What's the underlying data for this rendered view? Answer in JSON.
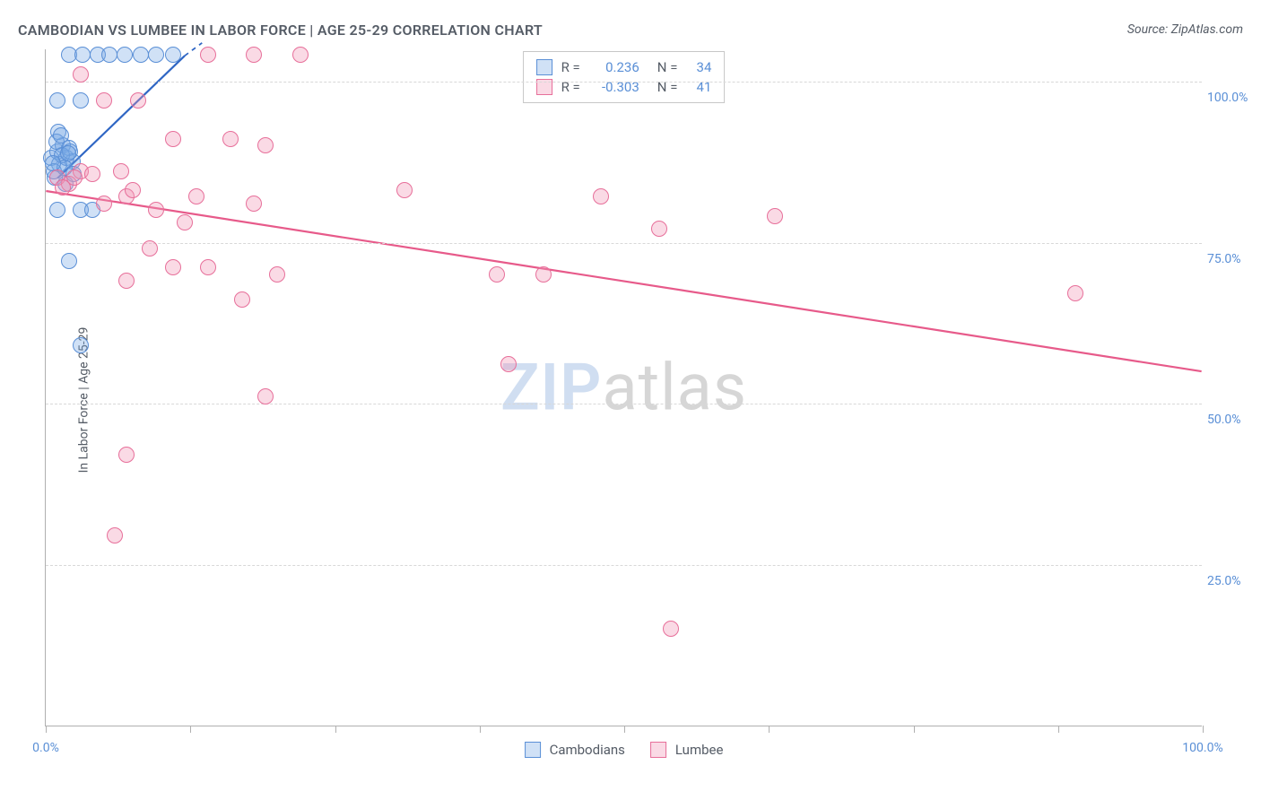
{
  "header": {
    "title": "CAMBODIAN VS LUMBEE IN LABOR FORCE | AGE 25-29 CORRELATION CHART",
    "source": "Source: ZipAtlas.com"
  },
  "ylabel": "In Labor Force | Age 25-29",
  "chart": {
    "type": "scatter",
    "xlim": [
      0,
      100
    ],
    "ylim": [
      0,
      105
    ],
    "x_ticks": [
      0,
      12.5,
      25,
      37.5,
      50,
      62.5,
      75,
      87.5,
      100
    ],
    "x_tick_labels": {
      "0": "0.0%",
      "100": "100.0%"
    },
    "y_grid": [
      25,
      50,
      75,
      100
    ],
    "y_tick_labels": {
      "25": "25.0%",
      "50": "50.0%",
      "75": "75.0%",
      "100": "100.0%"
    },
    "background_color": "#ffffff",
    "grid_color": "#d8d8d8",
    "marker_radius": 9,
    "marker_border": 1.5,
    "watermark": {
      "zip": "ZIP",
      "atlas": "atlas"
    },
    "series": [
      {
        "name": "Cambodians",
        "fill": "rgba(120,170,230,0.35)",
        "stroke": "#5a8fd6",
        "trend": {
          "x1": 1,
          "y1": 85,
          "x2": 12,
          "y2": 104,
          "dash_x2": 13.5,
          "dash_y2": 106,
          "color": "#2f66c4",
          "width": 2.2
        },
        "R": "0.236",
        "N": "34",
        "points": [
          [
            0.5,
            88
          ],
          [
            1,
            89
          ],
          [
            1.2,
            87
          ],
          [
            1.5,
            90
          ],
          [
            1.8,
            88
          ],
          [
            2,
            89.5
          ],
          [
            2.3,
            87.5
          ],
          [
            0.8,
            85
          ],
          [
            1.1,
            92
          ],
          [
            1,
            80
          ],
          [
            3,
            80
          ],
          [
            4,
            80
          ],
          [
            2,
            72
          ],
          [
            3,
            59
          ],
          [
            1,
            97
          ],
          [
            3,
            97
          ],
          [
            2,
            104
          ],
          [
            3.2,
            104
          ],
          [
            4.5,
            104
          ],
          [
            5.5,
            104
          ],
          [
            6.8,
            104
          ],
          [
            8.2,
            104
          ],
          [
            9.5,
            104
          ],
          [
            11,
            104
          ],
          [
            0.7,
            86
          ],
          [
            1.4,
            88.5
          ],
          [
            1.6,
            86.5
          ],
          [
            2.1,
            89
          ],
          [
            0.9,
            90.5
          ],
          [
            1.3,
            91.5
          ],
          [
            1.7,
            84
          ],
          [
            2.4,
            85.5
          ],
          [
            0.6,
            87.2
          ],
          [
            1.9,
            88.8
          ]
        ]
      },
      {
        "name": "Lumbee",
        "fill": "rgba(240,150,180,0.35)",
        "stroke": "#e76f9a",
        "trend": {
          "x1": 0,
          "y1": 83,
          "x2": 100,
          "y2": 55,
          "color": "#e75a8a",
          "width": 2.2
        },
        "R": "-0.303",
        "N": "41",
        "points": [
          [
            1,
            85
          ],
          [
            2,
            84
          ],
          [
            3,
            86
          ],
          [
            1.5,
            83.5
          ],
          [
            2.5,
            85
          ],
          [
            4,
            85.5
          ],
          [
            5,
            97
          ],
          [
            8,
            97
          ],
          [
            11,
            91
          ],
          [
            16,
            91
          ],
          [
            19,
            90
          ],
          [
            3,
            101
          ],
          [
            14,
            104
          ],
          [
            18,
            104
          ],
          [
            22,
            104
          ],
          [
            5,
            81
          ],
          [
            7,
            82
          ],
          [
            13,
            82
          ],
          [
            18,
            81
          ],
          [
            31,
            83
          ],
          [
            48,
            82
          ],
          [
            63,
            79
          ],
          [
            53,
            77
          ],
          [
            9,
            74
          ],
          [
            11,
            71
          ],
          [
            14,
            71
          ],
          [
            20,
            70
          ],
          [
            7,
            69
          ],
          [
            17,
            66
          ],
          [
            39,
            70
          ],
          [
            43,
            70
          ],
          [
            40,
            56
          ],
          [
            89,
            67
          ],
          [
            7,
            42
          ],
          [
            19,
            51
          ],
          [
            6,
            29.5
          ],
          [
            7.5,
            83
          ],
          [
            9.5,
            80
          ],
          [
            12,
            78
          ],
          [
            6.5,
            86
          ],
          [
            54,
            15
          ]
        ]
      }
    ]
  },
  "legend_top": {
    "rows": [
      {
        "sw_fill": "rgba(120,170,230,0.35)",
        "sw_stroke": "#5a8fd6",
        "r_label": "R =",
        "r_val": "0.236",
        "n_label": "N =",
        "n_val": "34",
        "pad": "  "
      },
      {
        "sw_fill": "rgba(240,150,180,0.35)",
        "sw_stroke": "#e76f9a",
        "r_label": "R =",
        "r_val": "-0.303",
        "n_label": "N =",
        "n_val": "41",
        "pad": ""
      }
    ],
    "label_color": "#555c66",
    "value_color": "#5a8fd6"
  },
  "legend_bottom": {
    "items": [
      {
        "sw_fill": "rgba(120,170,230,0.35)",
        "sw_stroke": "#5a8fd6",
        "label": "Cambodians"
      },
      {
        "sw_fill": "rgba(240,150,180,0.35)",
        "sw_stroke": "#e76f9a",
        "label": "Lumbee"
      }
    ]
  }
}
